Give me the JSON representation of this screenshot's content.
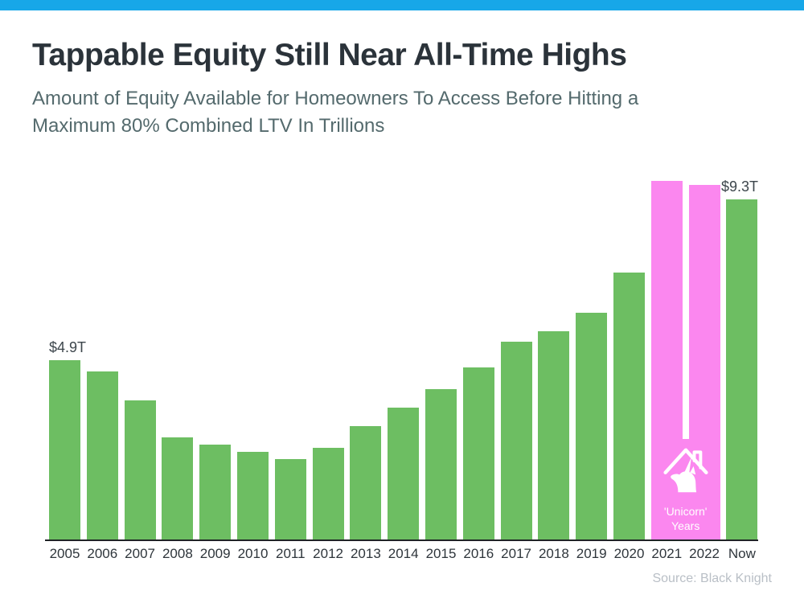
{
  "chart_data": {
    "type": "bar",
    "title": "Tappable Equity Still Near All-Time Highs",
    "subtitle_lines": [
      "Amount of Equity Available for Homeowners To Access Before Hitting a",
      "Maximum 80% Combined LTV In Trillions"
    ],
    "unit": "USD trillions",
    "categories": [
      "2005",
      "2006",
      "2007",
      "2008",
      "2009",
      "2010",
      "2011",
      "2012",
      "2013",
      "2014",
      "2015",
      "2016",
      "2017",
      "2018",
      "2019",
      "2020",
      "2021",
      "2022",
      "Now"
    ],
    "values": [
      4.9,
      4.6,
      3.8,
      2.8,
      2.6,
      2.4,
      2.2,
      2.5,
      3.1,
      3.6,
      4.1,
      4.7,
      5.4,
      5.7,
      6.2,
      7.3,
      9.8,
      9.7,
      9.3
    ],
    "ylim": [
      0,
      10
    ],
    "grid": false,
    "legend": "none",
    "colors": {
      "bar": "#6dbe62",
      "highlight": "#fb87ef",
      "top_bar": "#17a7e8"
    },
    "highlight": {
      "indices": [
        16,
        17
      ],
      "categories": [
        "2021",
        "2022"
      ],
      "label_lines": [
        "'Unicorn'",
        "Years"
      ],
      "icon": "house-unicorn-icon"
    },
    "annotations": [
      {
        "index": 0,
        "category": "2005",
        "text": "$4.9T",
        "align": "left"
      },
      {
        "index": 18,
        "category": "Now",
        "text": "$9.3T",
        "align": "right"
      }
    ],
    "source": "Source: Black Knight"
  }
}
